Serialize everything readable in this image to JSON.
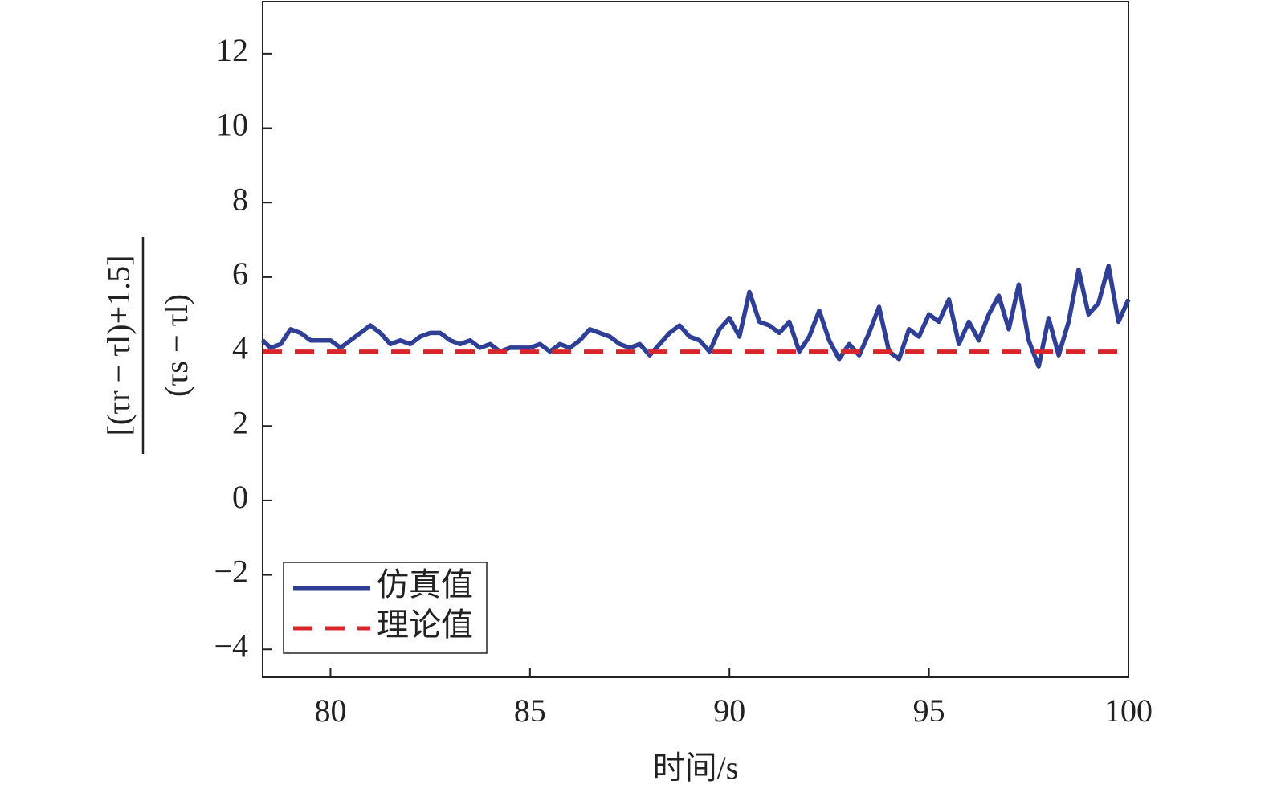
{
  "chart_data": {
    "type": "line",
    "xlabel": "时间/s",
    "ylabel": {
      "numerator": "[(τr − τl)+1.5]",
      "denominator": "(τs − τl)"
    },
    "xlim": [
      78.3,
      100
    ],
    "ylim": [
      -4.75,
      13.4
    ],
    "xticks": [
      80,
      85,
      90,
      95,
      100
    ],
    "yticks": [
      {
        "value": -4,
        "label": "−4"
      },
      {
        "value": -2,
        "label": "−2"
      },
      0,
      2,
      4,
      6,
      8,
      10,
      12
    ],
    "grid": false,
    "legend": "lower left",
    "series": [
      {
        "name": "仿真值",
        "color": "#2e3f95",
        "dash": false,
        "x": [
          78.3,
          78.5,
          78.75,
          79,
          79.25,
          79.5,
          79.75,
          80,
          80.25,
          80.5,
          80.75,
          81,
          81.25,
          81.5,
          81.75,
          82,
          82.25,
          82.5,
          82.75,
          83,
          83.25,
          83.5,
          83.75,
          84,
          84.25,
          84.5,
          84.75,
          85,
          85.25,
          85.5,
          85.75,
          86,
          86.25,
          86.5,
          86.75,
          87,
          87.25,
          87.5,
          87.75,
          88,
          88.25,
          88.5,
          88.75,
          89,
          89.25,
          89.5,
          89.75,
          90,
          90.25,
          90.5,
          90.75,
          91,
          91.25,
          91.5,
          91.75,
          92,
          92.25,
          92.5,
          92.75,
          93,
          93.25,
          93.5,
          93.75,
          94,
          94.25,
          94.5,
          94.75,
          95,
          95.25,
          95.5,
          95.75,
          96,
          96.25,
          96.5,
          96.75,
          97,
          97.25,
          97.5,
          97.75,
          98,
          98.25,
          98.5,
          98.75,
          99,
          99.25,
          99.5,
          99.75,
          100
        ],
        "values": [
          4.3,
          4.1,
          4.2,
          4.6,
          4.5,
          4.3,
          4.3,
          4.3,
          4.1,
          4.3,
          4.5,
          4.7,
          4.5,
          4.2,
          4.3,
          4.2,
          4.4,
          4.5,
          4.5,
          4.3,
          4.2,
          4.3,
          4.1,
          4.2,
          4.0,
          4.1,
          4.1,
          4.1,
          4.2,
          4.0,
          4.2,
          4.1,
          4.3,
          4.6,
          4.5,
          4.4,
          4.2,
          4.1,
          4.2,
          3.9,
          4.2,
          4.5,
          4.7,
          4.4,
          4.3,
          4.0,
          4.6,
          4.9,
          4.4,
          5.6,
          4.8,
          4.7,
          4.5,
          4.8,
          4.0,
          4.4,
          5.1,
          4.3,
          3.8,
          4.2,
          3.9,
          4.5,
          5.2,
          4.0,
          3.8,
          4.6,
          4.4,
          5.0,
          4.8,
          5.4,
          4.2,
          4.8,
          4.3,
          5.0,
          5.5,
          4.6,
          5.8,
          4.3,
          3.6,
          4.9,
          3.9,
          4.8,
          6.2,
          5.0,
          5.3,
          6.3,
          4.8,
          5.4
        ]
      },
      {
        "name": "理论值",
        "color": "#d9262b",
        "dash": true,
        "x": [
          78.3,
          100
        ],
        "values": [
          4,
          4
        ]
      }
    ]
  }
}
